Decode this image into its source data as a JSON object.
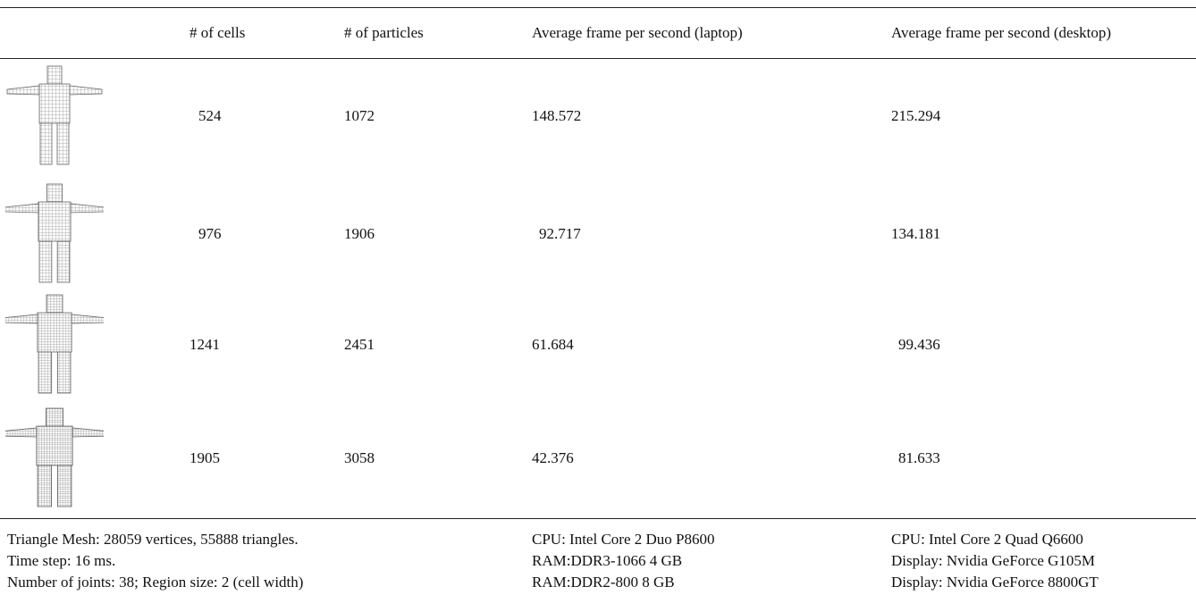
{
  "table": {
    "header": [
      "# of cells",
      "# of particles",
      "Average frame per second (laptop)",
      "Average frame per second (desktop)"
    ],
    "rows": [
      [
        524,
        1072,
        148.572,
        215.294
      ],
      [
        976,
        1906,
        92.717,
        134.181
      ],
      [
        1241,
        2451,
        61.684,
        99.436
      ],
      [
        1905,
        3058,
        42.376,
        81.633
      ]
    ]
  },
  "footer": {
    "left": [
      "Triangle Mesh: 28059 vertices, 55888 triangles.",
      "Time step: 16 ms.",
      "Number of joints: 38; Region size: 2 (cell width)"
    ],
    "middle": [
      "CPU: Intel Core 2 Duo P8600",
      "RAM:DDR3-1066 4 GB",
      "RAM:DDR2-800 8 GB"
    ],
    "right": [
      "CPU: Intel Core 2 Quad Q6600",
      "Display: Nvidia GeForce G105M",
      "Display: Nvidia GeForce 8800GT"
    ]
  }
}
